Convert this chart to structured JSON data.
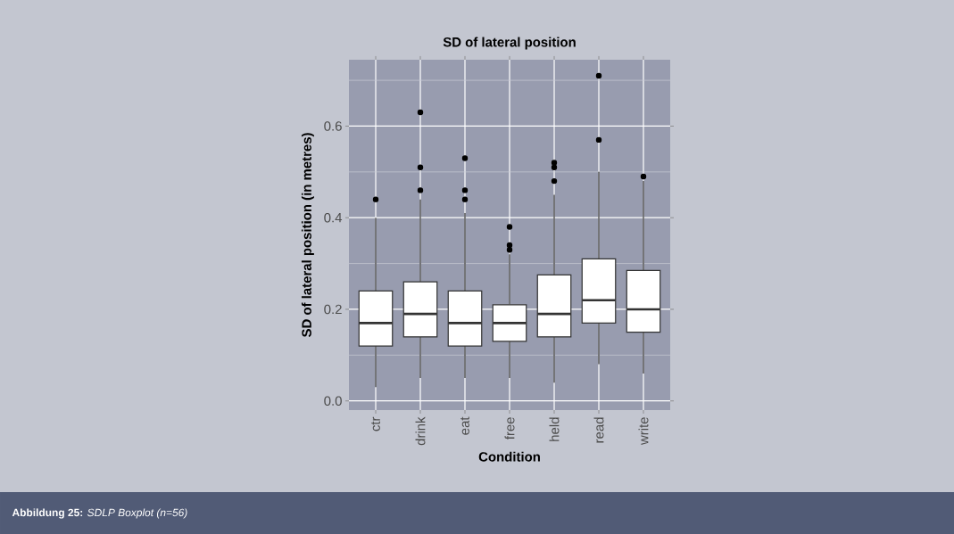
{
  "chart_data": {
    "type": "box",
    "title": "SD of lateral position",
    "xlabel": "Condition",
    "ylabel": "SD of lateral position (in metres)",
    "categories": [
      "ctr",
      "drink",
      "eat",
      "free",
      "held",
      "read",
      "write"
    ],
    "boxes": [
      {
        "low": 0.03,
        "q1": 0.12,
        "median": 0.17,
        "q3": 0.24,
        "high": 0.4,
        "outliers": [
          0.44
        ]
      },
      {
        "low": 0.05,
        "q1": 0.14,
        "median": 0.19,
        "q3": 0.26,
        "high": 0.44,
        "outliers": [
          0.46,
          0.51,
          0.63
        ]
      },
      {
        "low": 0.05,
        "q1": 0.12,
        "median": 0.17,
        "q3": 0.24,
        "high": 0.41,
        "outliers": [
          0.44,
          0.46,
          0.53
        ]
      },
      {
        "low": 0.05,
        "q1": 0.13,
        "median": 0.17,
        "q3": 0.21,
        "high": 0.32,
        "outliers": [
          0.33,
          0.34,
          0.38
        ]
      },
      {
        "low": 0.04,
        "q1": 0.14,
        "median": 0.19,
        "q3": 0.275,
        "high": 0.45,
        "outliers": [
          0.48,
          0.51,
          0.52
        ]
      },
      {
        "low": 0.08,
        "q1": 0.17,
        "median": 0.22,
        "q3": 0.31,
        "high": 0.5,
        "outliers": [
          0.57,
          0.71
        ]
      },
      {
        "low": 0.06,
        "q1": 0.15,
        "median": 0.2,
        "q3": 0.285,
        "high": 0.48,
        "outliers": [
          0.49
        ]
      }
    ],
    "color": "#ffffff",
    "ylim": [
      -0.02,
      0.745
    ],
    "yticks": [
      {
        "value": 0,
        "label": "0.0"
      },
      {
        "value": 0.1,
        "label": null
      },
      {
        "value": 0.2,
        "label": "0.2"
      },
      {
        "value": 0.3,
        "label": null
      },
      {
        "value": 0.4,
        "label": "0.4"
      },
      {
        "value": 0.5,
        "label": null
      },
      {
        "value": 0.6,
        "label": "0.6"
      },
      {
        "value": 0.7,
        "label": null
      }
    ],
    "grid": true,
    "marker": "circle",
    "annotations": [
      "**Abbildung 25:** *SDLP Boxplot (n=56)*"
    ]
  }
}
